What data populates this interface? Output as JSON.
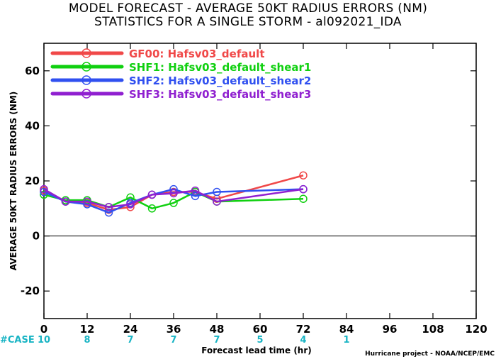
{
  "title_line1": "MODEL FORECAST - AVERAGE 50KT RADIUS ERRORS (NM)",
  "title_line2": "STATISTICS FOR A SINGLE STORM - al092021_IDA",
  "credit": "Hurricane project - NOAA/NCEP/EMC",
  "case_prefix": "#CASE",
  "cases": [
    {
      "hour": 0,
      "count": "10"
    },
    {
      "hour": 12,
      "count": "8"
    },
    {
      "hour": 24,
      "count": "7"
    },
    {
      "hour": 36,
      "count": "7"
    },
    {
      "hour": 48,
      "count": "7"
    },
    {
      "hour": 60,
      "count": "5"
    },
    {
      "hour": 72,
      "count": "4"
    },
    {
      "hour": 84,
      "count": "1"
    }
  ],
  "chart_data": {
    "type": "line",
    "title": "MODEL FORECAST - AVERAGE 50KT RADIUS ERRORS (NM)",
    "subtitle": "STATISTICS FOR A SINGLE STORM - al092021_IDA",
    "xlabel": "Forecast lead time (hr)",
    "ylabel": "AVERAGE 50KT RADIUS ERRORS (NM)",
    "xlim": [
      0,
      120
    ],
    "ylim": [
      -30,
      70
    ],
    "xticks": [
      0,
      12,
      24,
      36,
      48,
      60,
      72,
      84,
      96,
      108,
      120
    ],
    "yticks": [
      -20,
      0,
      20,
      40,
      60
    ],
    "zero_line": true,
    "grid": false,
    "legend_position": "top-left",
    "series": [
      {
        "name": "GF00: Hafsv03_default",
        "color": "#f04848",
        "x": [
          0,
          6,
          12,
          18,
          24,
          30,
          36,
          42,
          48,
          72
        ],
        "y": [
          16.5,
          12.5,
          12.0,
          9.5,
          10.5,
          15.0,
          16.0,
          16.0,
          13.5,
          22.0
        ]
      },
      {
        "name": "SHF1: Hafsv03_default_shear1",
        "color": "#10d010",
        "x": [
          0,
          6,
          12,
          18,
          24,
          30,
          36,
          42,
          48,
          72
        ],
        "y": [
          15.0,
          13.0,
          13.0,
          10.5,
          14.0,
          10.0,
          12.0,
          16.0,
          12.5,
          13.5
        ]
      },
      {
        "name": "SHF2: Hafsv03_default_shear2",
        "color": "#3050f0",
        "x": [
          0,
          6,
          12,
          18,
          24,
          30,
          36,
          42,
          48,
          72
        ],
        "y": [
          16.0,
          12.5,
          11.5,
          8.5,
          12.0,
          15.0,
          17.0,
          14.5,
          16.0,
          17.0
        ]
      },
      {
        "name": "SHF3: Hafsv03_default_shear3",
        "color": "#9020d0",
        "x": [
          0,
          6,
          12,
          18,
          24,
          30,
          36,
          42,
          48,
          72
        ],
        "y": [
          17.0,
          12.5,
          12.5,
          10.5,
          11.5,
          15.0,
          15.5,
          16.5,
          12.5,
          17.0
        ]
      }
    ]
  }
}
